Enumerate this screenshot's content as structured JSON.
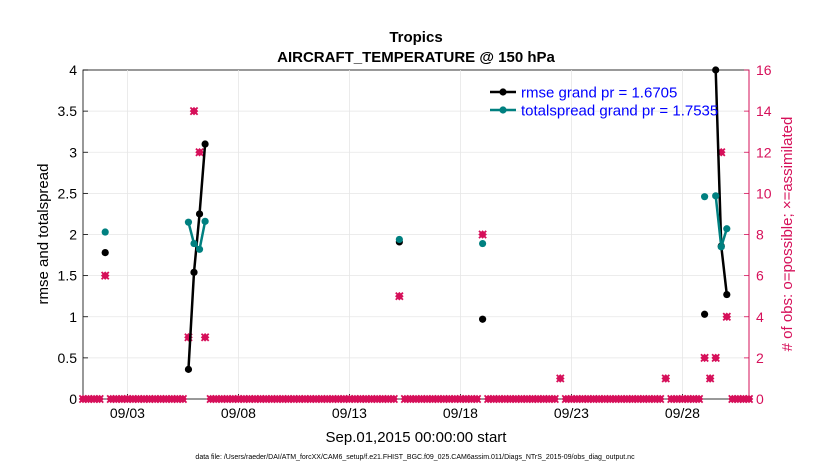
{
  "chart_data": {
    "type": "line",
    "title": "Tropics",
    "subtitle": "AIRCRAFT_TEMPERATURE @ 150 hPa",
    "xlabel": "Sep.01,2015 00:00:00 start",
    "ylabel": "rmse and totalspread",
    "y2label": "# of obs: o=possible; ×=assimilated",
    "xlim": [
      1.0,
      31.0
    ],
    "ylim": [
      0,
      4
    ],
    "y2lim": [
      0,
      16
    ],
    "x_ticks": [
      3,
      8,
      13,
      18,
      23,
      28
    ],
    "x_tick_labels": [
      "09/03",
      "09/08",
      "09/13",
      "09/18",
      "09/23",
      "09/28"
    ],
    "y_ticks": [
      0,
      0.5,
      1,
      1.5,
      2,
      2.5,
      3,
      3.5,
      4
    ],
    "y_tick_labels": [
      "0",
      "0.5",
      "1",
      "1.5",
      "2",
      "2.5",
      "3",
      "3.5",
      "4"
    ],
    "y2_ticks": [
      0,
      2,
      4,
      6,
      8,
      10,
      12,
      14,
      16
    ],
    "y2_tick_labels": [
      "0",
      "2",
      "4",
      "6",
      "8",
      "10",
      "12",
      "14",
      "16"
    ],
    "legend_position": "top-right",
    "colors": {
      "rmse": "#000000",
      "spread": "#008080",
      "obs": "#d6105a",
      "axis2": "#d6105a",
      "legend_text": "#0000ff"
    },
    "series": [
      {
        "name": "rmse grand pr = 1.6705",
        "points": [
          [
            2.0,
            1.78
          ],
          [
            5.75,
            0.36
          ],
          [
            6.0,
            1.54
          ],
          [
            6.25,
            2.25
          ],
          [
            6.5,
            3.1
          ],
          [
            15.25,
            1.91
          ],
          [
            19.0,
            0.97
          ],
          [
            29.0,
            1.03
          ],
          [
            29.5,
            4.0
          ],
          [
            29.75,
            1.86
          ],
          [
            30.0,
            1.27
          ]
        ],
        "segments": [
          [
            [
              5.75,
              0.36
            ],
            [
              6.0,
              1.54
            ],
            [
              6.25,
              2.25
            ],
            [
              6.5,
              3.1
            ]
          ],
          [
            [
              29.5,
              4.0
            ],
            [
              29.75,
              1.86
            ],
            [
              30.0,
              1.27
            ]
          ]
        ]
      },
      {
        "name": "totalspread grand pr = 1.7535",
        "points": [
          [
            2.0,
            2.03
          ],
          [
            5.75,
            2.15
          ],
          [
            6.0,
            1.89
          ],
          [
            6.25,
            1.82
          ],
          [
            6.5,
            2.16
          ],
          [
            15.25,
            1.94
          ],
          [
            19.0,
            1.89
          ],
          [
            29.0,
            2.46
          ],
          [
            29.5,
            2.47
          ],
          [
            29.75,
            1.85
          ],
          [
            30.0,
            2.07
          ]
        ],
        "segments": [
          [
            [
              5.75,
              2.15
            ],
            [
              6.0,
              1.89
            ],
            [
              6.25,
              1.82
            ],
            [
              6.5,
              2.16
            ]
          ],
          [
            [
              29.5,
              2.47
            ],
            [
              29.75,
              1.85
            ],
            [
              30.0,
              2.07
            ]
          ]
        ]
      }
    ],
    "obs_possible": [
      [
        2.0,
        6
      ],
      [
        5.75,
        3
      ],
      [
        6.0,
        14
      ],
      [
        6.25,
        12
      ],
      [
        6.5,
        3
      ],
      [
        15.25,
        5
      ],
      [
        19.0,
        8
      ],
      [
        22.5,
        1
      ],
      [
        27.25,
        1
      ],
      [
        29.0,
        2
      ],
      [
        29.25,
        1
      ],
      [
        29.5,
        2
      ],
      [
        29.75,
        12
      ],
      [
        30.0,
        4
      ]
    ],
    "obs_zero_start": 1.0,
    "obs_zero_end": 31.0,
    "obs_zero_step": 0.25
  },
  "footer": {
    "datafile": "data file: /Users/raeder/DAI/ATM_forcXX/CAM6_setup/f.e21.FHIST_BGC.f09_025.CAM6assim.011/Diags_NTrS_2015-09/obs_diag_output.nc"
  }
}
